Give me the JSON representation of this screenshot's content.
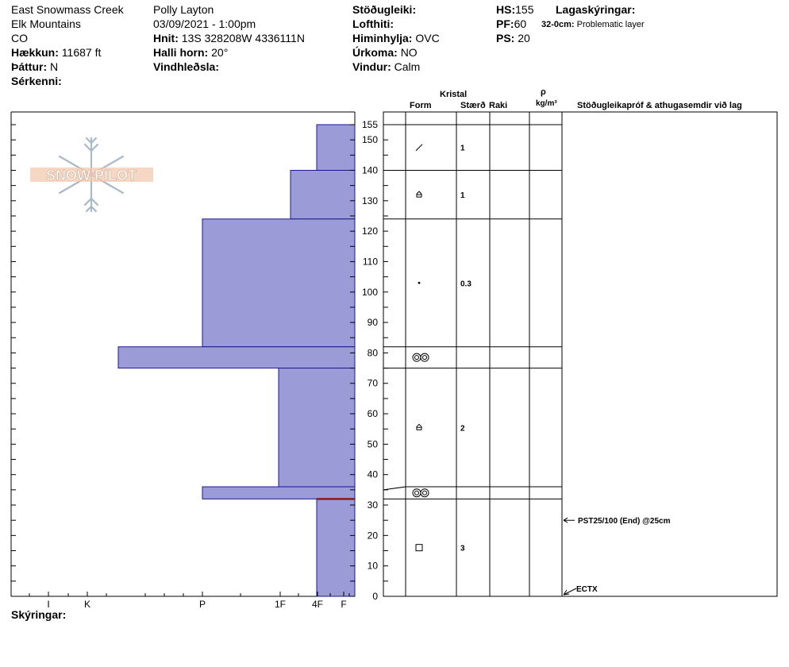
{
  "header": {
    "location": "East Snowmass Creek",
    "range": "Elk Mountains",
    "state": "CO",
    "elevation_label": "Hækkun:",
    "elevation_value": "11687 ft",
    "aspect_label": "Þáttur:",
    "aspect_value": "N",
    "features_label": "Sérkenni:",
    "observer": "Polly Layton",
    "datetime": "03/09/2021 - 1:00pm",
    "coords_label": "Hnit:",
    "coords_value": "13S 328208W 4336111N",
    "slope_label": "Halli horn:",
    "slope_value": "20°",
    "wind_loading_label": "Vindhleðsla:",
    "stability_label": "Stöðugleiki:",
    "air_temp_label": "Lofthiti:",
    "sky_label": "Himinhylja:",
    "sky_value": "OVC",
    "precip_label": "Úrkoma:",
    "precip_value": "NO",
    "wind_label": "Vindur:",
    "wind_value": "Calm",
    "hs_label": "HS:",
    "hs_value": "155",
    "pf_label": "PF:",
    "pf_value": "60",
    "ps_label": "PS:",
    "ps_value": "20",
    "layer_notes_label": "Lagaskýringar:",
    "layer_note_range": "32-0cm:",
    "layer_note_text": "Problematic layer"
  },
  "logo_text": "SNOW PILOT",
  "columns": {
    "crystal": "Kristal",
    "form": "Form",
    "size": "Stærð",
    "moisture": "Raki",
    "rho": "ρ",
    "density_unit": "kg/m³",
    "tests_comments": "Stöðugleikapróf & athugasemdir við lag"
  },
  "comments_label": "Skýringar:",
  "colors": {
    "hardness_fill": "#9b9bd8",
    "hardness_stroke": "#1a1a8c",
    "problem_layer": "#8b1a1a"
  },
  "chart_data": {
    "type": "snow-profile",
    "y_axis": {
      "min": 0,
      "max": 155,
      "unit": "cm",
      "tick_labels": [
        0,
        10,
        20,
        30,
        40,
        50,
        60,
        70,
        80,
        90,
        100,
        110,
        120,
        130,
        140,
        150,
        155
      ]
    },
    "hardness_scale": [
      "I",
      "K",
      "P",
      "1F",
      "4F",
      "F"
    ],
    "layers": [
      {
        "top": 155,
        "bottom": 140,
        "hardness": "4F"
      },
      {
        "top": 140,
        "bottom": 124,
        "hardness": "1F+"
      },
      {
        "top": 124,
        "bottom": 82,
        "hardness": "P"
      },
      {
        "top": 82,
        "bottom": 75,
        "hardness": "K+"
      },
      {
        "top": 75,
        "bottom": 36,
        "hardness": "1F"
      },
      {
        "top": 36,
        "bottom": 32,
        "hardness": "P"
      },
      {
        "top": 32,
        "bottom": 0,
        "hardness": "4F"
      }
    ],
    "problem_layer_depth": 32,
    "crystal_rows": [
      {
        "top": 155,
        "bottom": 140,
        "form": "precipitation particles",
        "form_symbol": "/",
        "size": "1"
      },
      {
        "top": 140,
        "bottom": 124,
        "form": "faceted rounded",
        "form_symbol": "⌂",
        "size": "1"
      },
      {
        "top": 124,
        "bottom": 82,
        "form": "rounded grains",
        "form_symbol": "•",
        "size": "0.3"
      },
      {
        "top": 82,
        "bottom": 75,
        "form": "melt forms",
        "form_symbol": "◎◎",
        "size": ""
      },
      {
        "top": 75,
        "bottom": 36,
        "form": "faceted rounded",
        "form_symbol": "⌂",
        "size": "2"
      },
      {
        "top": 36,
        "bottom": 32,
        "form": "melt forms",
        "form_symbol": "◎◎",
        "size": ""
      },
      {
        "top": 32,
        "bottom": 0,
        "form": "faceted crystals",
        "form_symbol": "□",
        "size": "3"
      }
    ],
    "stability_tests": [
      {
        "depth": 25,
        "text": "PST25/100 (End) @25cm"
      },
      {
        "depth": 0,
        "text": "ECTX"
      }
    ]
  }
}
